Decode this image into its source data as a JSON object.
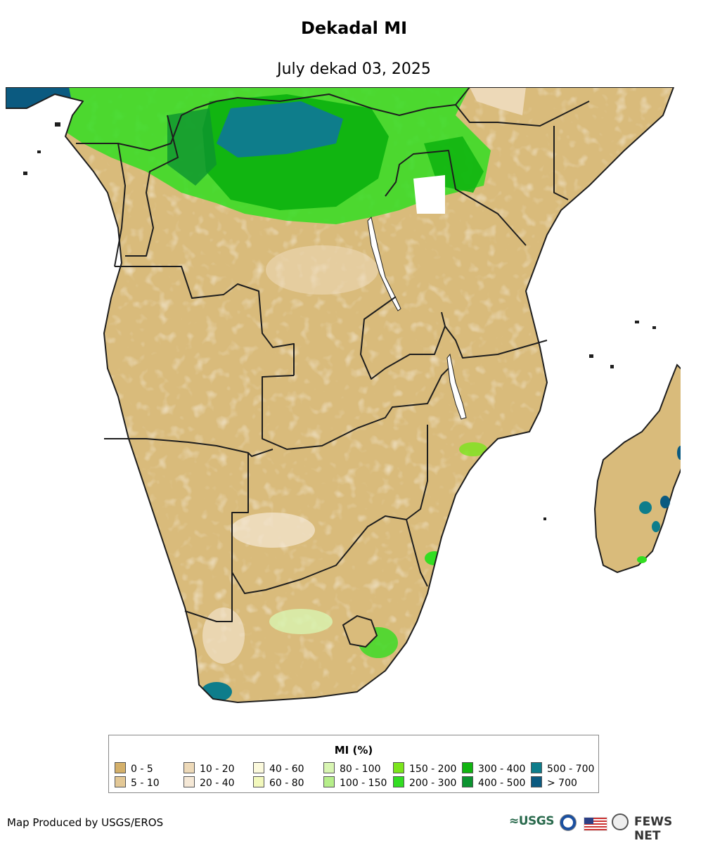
{
  "header": {
    "title": "Dekadal MI",
    "subtitle": "July dekad 03, 2025"
  },
  "legend": {
    "title": "MI (%)",
    "items": [
      {
        "label": "0 - 5",
        "color": "#d4b06a"
      },
      {
        "label": "5 - 10",
        "color": "#e3c896"
      },
      {
        "label": "10 - 20",
        "color": "#edd9b8"
      },
      {
        "label": "20 - 40",
        "color": "#f5e8d6"
      },
      {
        "label": "40 - 60",
        "color": "#fbf9dc"
      },
      {
        "label": "60 - 80",
        "color": "#f2f8bc"
      },
      {
        "label": "80 - 100",
        "color": "#d8f5b2"
      },
      {
        "label": "100 - 150",
        "color": "#b6ee8a"
      },
      {
        "label": "150 - 200",
        "color": "#7be51c"
      },
      {
        "label": "200 - 300",
        "color": "#33dd22"
      },
      {
        "label": "300 - 400",
        "color": "#11b511"
      },
      {
        "label": "400 - 500",
        "color": "#0c9430"
      },
      {
        "label": "500 - 700",
        "color": "#0e7d8b"
      },
      {
        "label": "> 700",
        "color": "#0b5a80"
      }
    ]
  },
  "colors": {
    "land_dry": "#d9bb7b",
    "border": "#1e1e1e",
    "water": "#ffffff"
  },
  "footer": {
    "producer": "Map Produced by USGS/EROS",
    "usgs_label": "≈USGS",
    "fews_label": "FEWS NET",
    "logo_icons": [
      "usgs-logo",
      "noaa-logo-icon",
      "us-flag-icon",
      "state-department-seal-icon"
    ]
  }
}
